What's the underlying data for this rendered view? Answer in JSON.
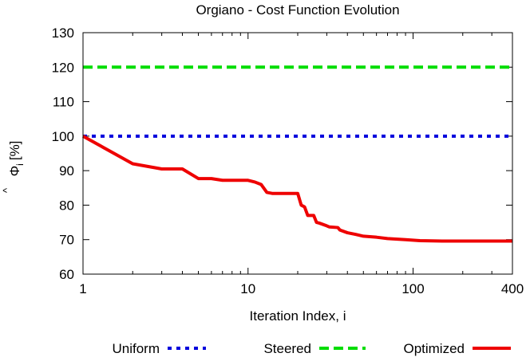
{
  "chart_data": {
    "type": "line",
    "title": "Orgiano - Cost Function Evolution",
    "xlabel": "Iteration Index, i",
    "ylabel_symbol": "Φ",
    "ylabel_hat": "^",
    "ylabel_subscript": "i",
    "ylabel_unit": "[%]",
    "xscale": "log",
    "xlim": [
      1,
      400
    ],
    "ylim": [
      60,
      130
    ],
    "xticks": [
      1,
      10,
      100,
      400
    ],
    "yticks": [
      60,
      70,
      80,
      90,
      100,
      110,
      120,
      130
    ],
    "grid": false,
    "legend_position": "bottom",
    "series": [
      {
        "name": "Uniform",
        "color": "#0000dd",
        "style": "dotted",
        "x": [
          1,
          400
        ],
        "y": [
          100,
          100
        ]
      },
      {
        "name": "Steered",
        "color": "#00dd00",
        "style": "dashed",
        "x": [
          1,
          400
        ],
        "y": [
          120,
          120
        ]
      },
      {
        "name": "Optimized",
        "color": "#ee0000",
        "style": "solid",
        "x": [
          1,
          2,
          3,
          4,
          5,
          6,
          7,
          10,
          11,
          12,
          13,
          14,
          20,
          21,
          22,
          23,
          25,
          26,
          27,
          30,
          31,
          35,
          36,
          40,
          45,
          50,
          60,
          70,
          90,
          110,
          150,
          200,
          300,
          400
        ],
        "y": [
          100,
          92,
          90.5,
          90.5,
          87.7,
          87.7,
          87.2,
          87.2,
          86.7,
          86,
          83.7,
          83.4,
          83.4,
          80,
          79.5,
          77,
          77,
          75,
          74.8,
          74,
          73.7,
          73.5,
          72.8,
          72,
          71.5,
          71,
          70.7,
          70.3,
          70,
          69.7,
          69.6,
          69.6,
          69.6,
          69.6
        ]
      }
    ]
  }
}
